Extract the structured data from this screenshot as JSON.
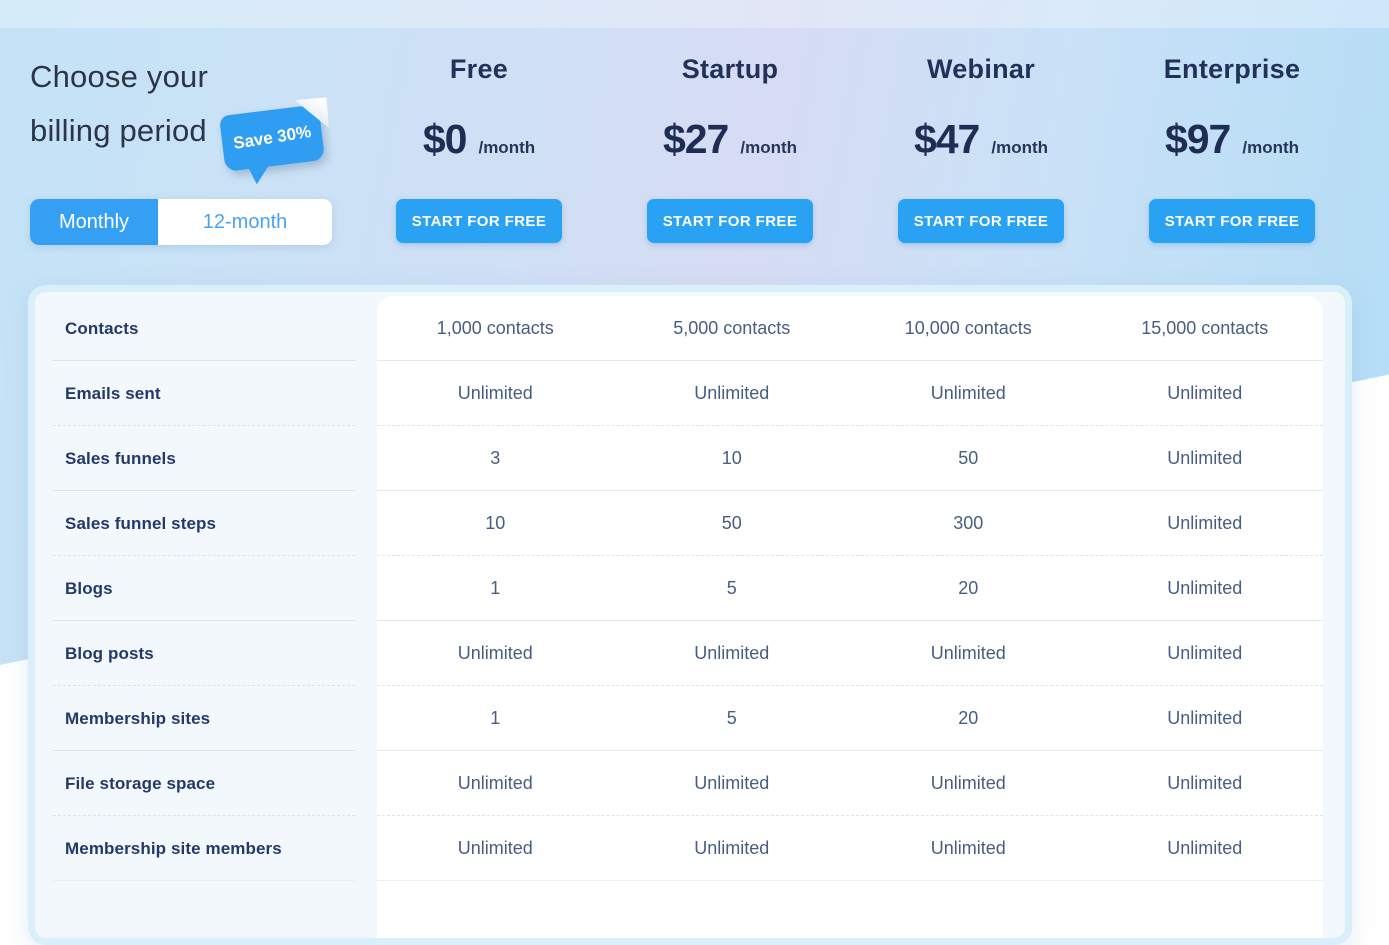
{
  "billing": {
    "title_line1": "Choose your",
    "title_line2": "billing period",
    "badge_label": "Save 30%",
    "options": [
      {
        "label": "Monthly",
        "selected": true
      },
      {
        "label": "12-month",
        "selected": false
      }
    ]
  },
  "plans": [
    {
      "name": "Free",
      "price": "$0",
      "period": "/month",
      "cta": "START FOR FREE"
    },
    {
      "name": "Startup",
      "price": "$27",
      "period": "/month",
      "cta": "START FOR FREE"
    },
    {
      "name": "Webinar",
      "price": "$47",
      "period": "/month",
      "cta": "START FOR FREE"
    },
    {
      "name": "Enterprise",
      "price": "$97",
      "period": "/month",
      "cta": "START FOR FREE"
    }
  ],
  "features": {
    "rows": [
      {
        "label": "Contacts",
        "values": [
          "1,000 contacts",
          "5,000 contacts",
          "10,000 contacts",
          "15,000 contacts"
        ]
      },
      {
        "label": "Emails sent",
        "values": [
          "Unlimited",
          "Unlimited",
          "Unlimited",
          "Unlimited"
        ]
      },
      {
        "label": "Sales funnels",
        "values": [
          "3",
          "10",
          "50",
          "Unlimited"
        ]
      },
      {
        "label": "Sales funnel steps",
        "values": [
          "10",
          "50",
          "300",
          "Unlimited"
        ]
      },
      {
        "label": "Blogs",
        "values": [
          "1",
          "5",
          "20",
          "Unlimited"
        ]
      },
      {
        "label": "Blog posts",
        "values": [
          "Unlimited",
          "Unlimited",
          "Unlimited",
          "Unlimited"
        ]
      },
      {
        "label": "Membership sites",
        "values": [
          "1",
          "5",
          "20",
          "Unlimited"
        ]
      },
      {
        "label": "File storage space",
        "values": [
          "Unlimited",
          "Unlimited",
          "Unlimited",
          "Unlimited"
        ]
      },
      {
        "label": "Membership site members",
        "values": [
          "Unlimited",
          "Unlimited",
          "Unlimited",
          "Unlimited"
        ]
      }
    ]
  },
  "colors": {
    "accent": "#2f9ef2",
    "button_blue": "#29a2f4",
    "navy": "#1f2d54"
  }
}
